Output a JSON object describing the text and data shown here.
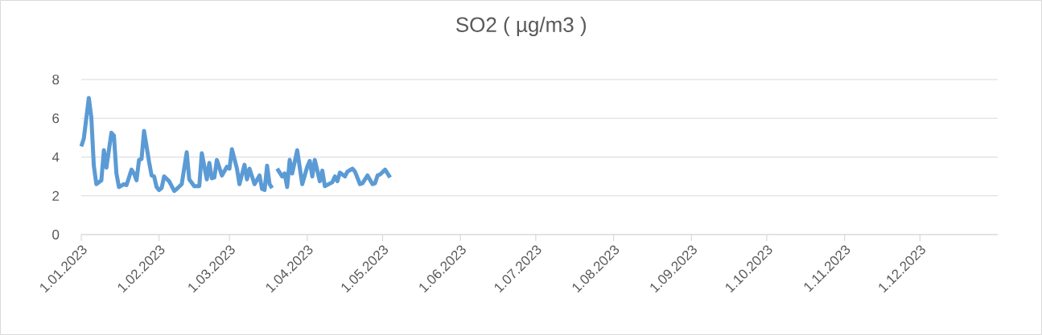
{
  "chart_data": {
    "type": "line",
    "title": "SO2 ( µg/m3 )",
    "x": [
      "2023-01-01",
      "2023-01-02",
      "2023-01-04",
      "2023-01-05",
      "2023-01-06",
      "2023-01-07",
      "2023-01-09",
      "2023-01-10",
      "2023-01-11",
      "2023-01-13",
      "2023-01-14",
      "2023-01-15",
      "2023-01-16",
      "2023-01-18",
      "2023-01-19",
      "2023-01-21",
      "2023-01-22",
      "2023-01-23",
      "2023-01-24",
      "2023-01-25",
      "2023-01-26",
      "2023-01-28",
      "2023-01-29",
      "2023-01-30",
      "2023-01-31",
      "2023-02-01",
      "2023-02-02",
      "2023-02-03",
      "2023-02-05",
      "2023-02-07",
      "2023-02-08",
      "2023-02-10",
      "2023-02-12",
      "2023-02-13",
      "2023-02-15",
      "2023-02-17",
      "2023-02-18",
      "2023-02-20",
      "2023-02-21",
      "2023-02-22",
      "2023-02-23",
      "2023-02-24",
      "2023-02-26",
      "2023-02-28",
      "2023-03-01",
      "2023-03-02",
      "2023-03-04",
      "2023-03-05",
      "2023-03-07",
      "2023-03-08",
      "2023-03-09",
      "2023-03-11",
      "2023-03-13",
      "2023-03-14",
      "2023-03-15",
      "2023-03-16",
      "2023-03-17",
      "2023-03-18",
      "2023-03-19",
      "2023-03-20",
      "2023-03-22",
      "2023-03-23",
      "2023-03-24",
      "2023-03-25",
      "2023-03-26",
      "2023-03-28",
      "2023-03-30",
      "2023-04-01",
      "2023-04-02",
      "2023-04-03",
      "2023-04-04",
      "2023-04-06",
      "2023-04-07",
      "2023-04-08",
      "2023-04-11",
      "2023-04-12",
      "2023-04-13",
      "2023-04-14",
      "2023-04-16",
      "2023-04-17",
      "2023-04-19",
      "2023-04-20",
      "2023-04-22",
      "2023-04-23",
      "2023-04-25",
      "2023-04-27",
      "2023-04-28",
      "2023-04-29",
      "2023-04-30",
      "2023-05-02",
      "2023-05-04"
    ],
    "series": [
      {
        "color": "#5b9bd5",
        "values": [
          4.55,
          4.95,
          7.05,
          6.05,
          3.55,
          2.6,
          2.8,
          4.35,
          3.45,
          5.25,
          5.1,
          3.15,
          2.45,
          2.6,
          2.55,
          3.35,
          3.15,
          2.8,
          3.85,
          3.9,
          5.35,
          3.75,
          3.05,
          3.0,
          2.45,
          2.3,
          2.4,
          3.0,
          2.75,
          2.25,
          2.35,
          2.6,
          4.25,
          2.85,
          2.5,
          2.5,
          4.2,
          2.85,
          3.7,
          2.9,
          2.95,
          3.85,
          3.05,
          3.5,
          3.4,
          4.4,
          3.4,
          2.6,
          3.6,
          2.85,
          3.4,
          2.6,
          3.05,
          2.35,
          2.3,
          3.55,
          2.6,
          2.4,
          null,
          3.4,
          3.0,
          3.15,
          2.45,
          3.85,
          3.15,
          4.35,
          2.6,
          3.5,
          3.8,
          3.0,
          3.85,
          2.75,
          3.3,
          2.5,
          2.7,
          3.0,
          2.75,
          3.2,
          3.0,
          3.25,
          3.4,
          3.25,
          2.6,
          2.65,
          3.05,
          2.6,
          2.65,
          3.05,
          3.1,
          3.35,
          2.95
        ]
      }
    ],
    "xlim": [
      "2023-01-01",
      "2024-01-01"
    ],
    "xticks": [
      {
        "value": "2023-01-01",
        "label": "1.01.2023"
      },
      {
        "value": "2023-02-01",
        "label": "1.02.2023"
      },
      {
        "value": "2023-03-01",
        "label": "1.03.2023"
      },
      {
        "value": "2023-04-01",
        "label": "1.04.2023"
      },
      {
        "value": "2023-05-01",
        "label": "1.05.2023"
      },
      {
        "value": "2023-06-01",
        "label": "1.06.2023"
      },
      {
        "value": "2023-07-01",
        "label": "1.07.2023"
      },
      {
        "value": "2023-08-01",
        "label": "1.08.2023"
      },
      {
        "value": "2023-09-01",
        "label": "1.09.2023"
      },
      {
        "value": "2023-10-01",
        "label": "1.10.2023"
      },
      {
        "value": "2023-11-01",
        "label": "1.11.2023"
      },
      {
        "value": "2023-12-01",
        "label": "1.12.2023"
      }
    ],
    "ylim": [
      0,
      8
    ],
    "yticks": [
      0,
      2,
      4,
      6,
      8
    ],
    "grid": "y"
  }
}
